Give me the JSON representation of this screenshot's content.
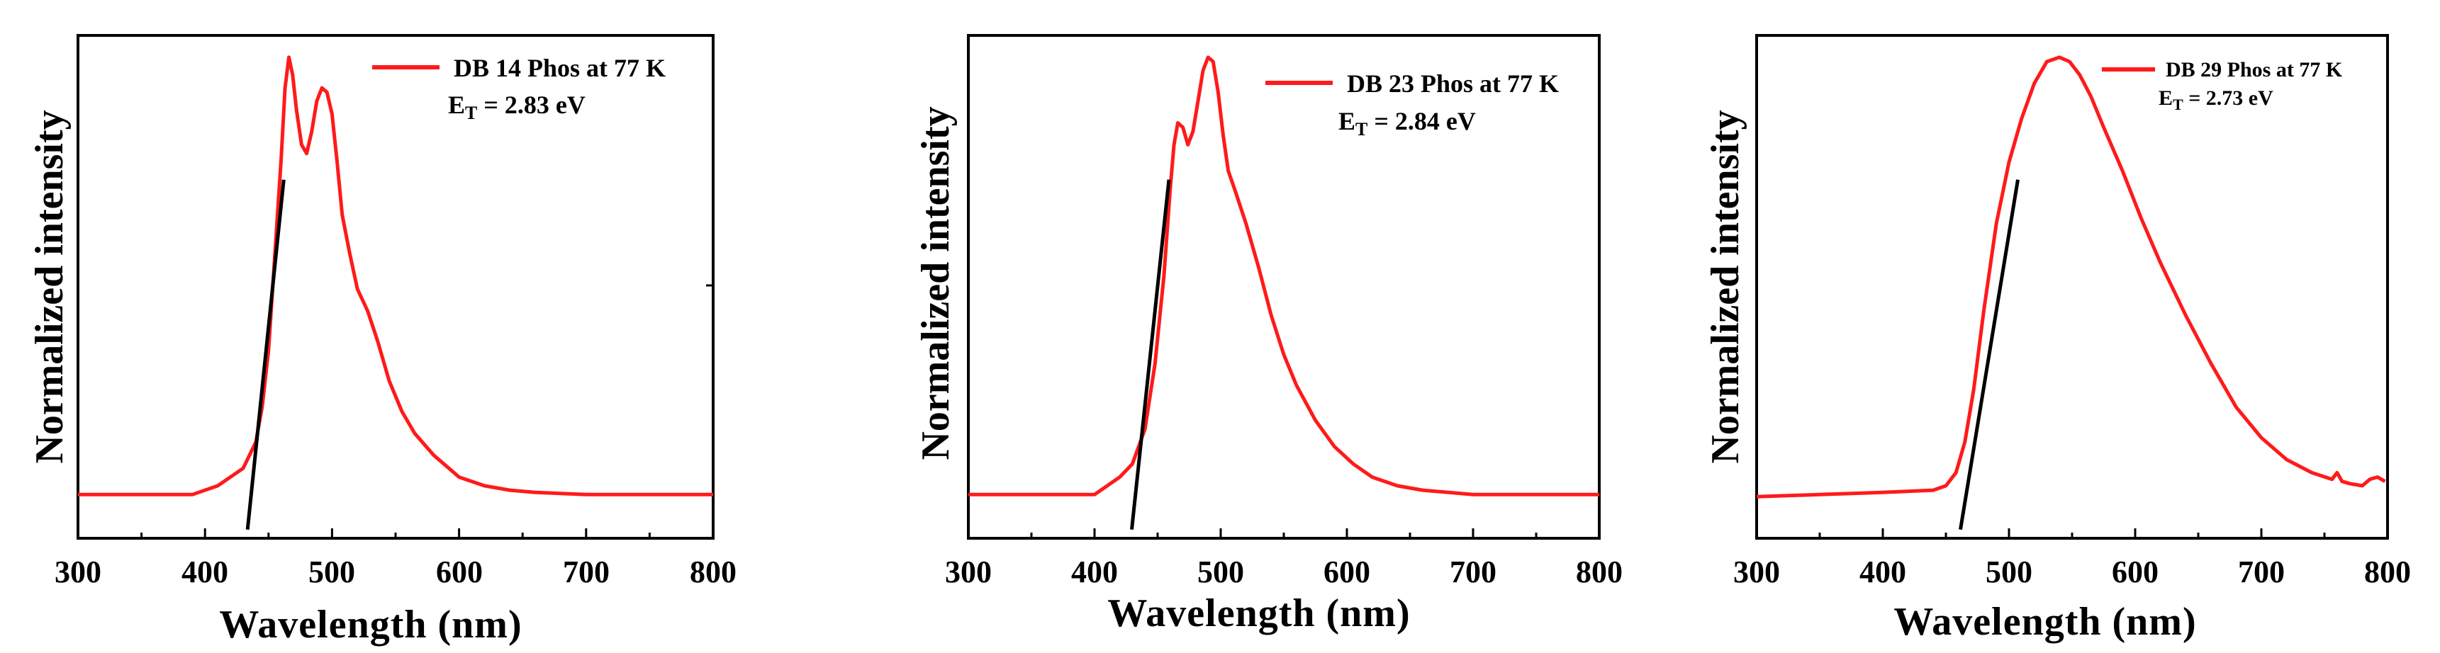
{
  "colors": {
    "curve": "#ff1a1a",
    "onset": "#000000",
    "axes": "#000000"
  },
  "chart_data": [
    {
      "type": "line",
      "xlabel": "Wavelength (nm)",
      "ylabel": "Normalized intensity",
      "xlim": [
        300,
        800
      ],
      "ylim": [
        -0.1,
        1.05
      ],
      "xticks": [
        300,
        400,
        500,
        600,
        700,
        800
      ],
      "xtick_labels": [
        "300",
        "400",
        "500",
        "600",
        "700",
        "800"
      ],
      "legend": {
        "label": "DB 14 Phos at 77 K",
        "position": "top-right",
        "annotation": {
          "prefix": "E",
          "sub": "T",
          "suffix": " = 2.83 eV"
        }
      },
      "series": [
        {
          "name": "DB 14 Phos at 77 K",
          "x": [
            300,
            350,
            390,
            410,
            420,
            430,
            440,
            445,
            450,
            455,
            460,
            463,
            466,
            469,
            472,
            476,
            480,
            484,
            488,
            492,
            496,
            500,
            504,
            508,
            514,
            520,
            528,
            536,
            545,
            555,
            565,
            580,
            600,
            620,
            640,
            660,
            700,
            750,
            800
          ],
          "y": [
            0.0,
            0.0,
            0.0,
            0.02,
            0.04,
            0.06,
            0.12,
            0.2,
            0.33,
            0.55,
            0.77,
            0.93,
            1.0,
            0.96,
            0.88,
            0.8,
            0.78,
            0.83,
            0.9,
            0.93,
            0.92,
            0.87,
            0.76,
            0.64,
            0.55,
            0.47,
            0.42,
            0.35,
            0.26,
            0.19,
            0.14,
            0.09,
            0.04,
            0.02,
            0.01,
            0.005,
            0.0,
            0.0,
            0.0
          ]
        },
        {
          "name": "onset",
          "role": "tangent",
          "x": [
            433.5,
            462
          ],
          "y": [
            -0.08,
            0.72
          ]
        }
      ]
    },
    {
      "type": "line",
      "xlabel": "Wavelength (nm)",
      "ylabel": "Normalized intensity",
      "xlim": [
        300,
        800
      ],
      "ylim": [
        -0.1,
        1.05
      ],
      "xticks": [
        300,
        400,
        500,
        600,
        700,
        800
      ],
      "xtick_labels": [
        "300",
        "400",
        "500",
        "600",
        "700",
        "800"
      ],
      "legend": {
        "label": "DB 23 Phos at 77 K",
        "position": "top-right",
        "annotation": {
          "prefix": "E",
          "sub": "T",
          "suffix": " = 2.84 eV"
        }
      },
      "series": [
        {
          "name": "DB 23 Phos at 77 K",
          "x": [
            300,
            350,
            400,
            410,
            420,
            430,
            440,
            448,
            455,
            460,
            463,
            466,
            470,
            474,
            478,
            482,
            486,
            490,
            494,
            498,
            502,
            506,
            512,
            520,
            530,
            540,
            550,
            560,
            575,
            590,
            605,
            620,
            640,
            660,
            700,
            750,
            800
          ],
          "y": [
            0.0,
            0.0,
            0.0,
            0.02,
            0.04,
            0.07,
            0.15,
            0.3,
            0.5,
            0.7,
            0.8,
            0.85,
            0.84,
            0.8,
            0.83,
            0.9,
            0.97,
            1.0,
            0.99,
            0.92,
            0.82,
            0.74,
            0.69,
            0.62,
            0.52,
            0.41,
            0.32,
            0.25,
            0.17,
            0.11,
            0.07,
            0.04,
            0.02,
            0.01,
            0.0,
            0.0,
            0.0
          ]
        },
        {
          "name": "onset",
          "role": "tangent",
          "x": [
            429.5,
            459
          ],
          "y": [
            -0.08,
            0.72
          ]
        }
      ]
    },
    {
      "type": "line",
      "xlabel": "Wavelength (nm)",
      "ylabel": "Normalized intensity",
      "xlim": [
        300,
        800
      ],
      "ylim": [
        -0.1,
        1.05
      ],
      "xticks": [
        300,
        400,
        500,
        600,
        700,
        800
      ],
      "xtick_labels": [
        "300",
        "400",
        "500",
        "600",
        "700",
        "800"
      ],
      "legend": {
        "label": "DB 29 Phos at 77 K",
        "position": "top-right",
        "annotation": {
          "prefix": "E",
          "sub": "T",
          "suffix": " = 2.73 eV"
        }
      },
      "series": [
        {
          "name": "DB 29 Phos at 77 K",
          "x": [
            300,
            350,
            400,
            440,
            450,
            458,
            465,
            472,
            480,
            490,
            500,
            510,
            520,
            530,
            540,
            548,
            556,
            565,
            575,
            590,
            605,
            620,
            640,
            660,
            680,
            700,
            720,
            740,
            756,
            760,
            764,
            770,
            780,
            786,
            792,
            798
          ],
          "y": [
            -0.005,
            0.0,
            0.005,
            0.01,
            0.02,
            0.05,
            0.12,
            0.24,
            0.42,
            0.62,
            0.76,
            0.86,
            0.94,
            0.99,
            1.0,
            0.99,
            0.96,
            0.91,
            0.84,
            0.74,
            0.63,
            0.53,
            0.41,
            0.3,
            0.2,
            0.13,
            0.08,
            0.05,
            0.035,
            0.05,
            0.03,
            0.025,
            0.02,
            0.035,
            0.04,
            0.03
          ]
        },
        {
          "name": "onset",
          "role": "tangent",
          "x": [
            461.5,
            507
          ],
          "y": [
            -0.08,
            0.72
          ]
        }
      ]
    }
  ]
}
